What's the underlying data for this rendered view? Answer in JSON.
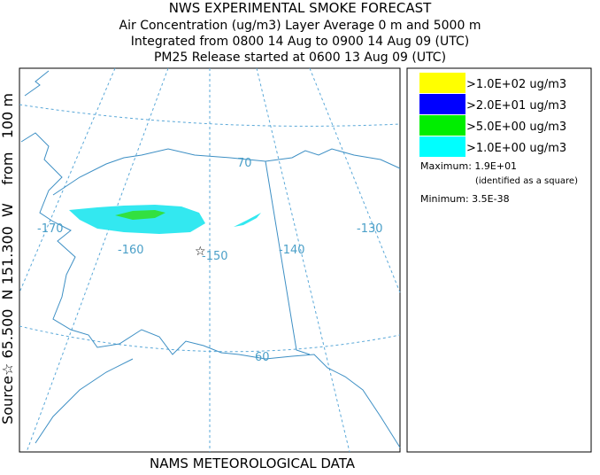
{
  "header": {
    "title": "NWS EXPERIMENTAL SMOKE FORECAST",
    "lines": [
      "Air Concentration (ug/m3) Layer Average    0 m and  5000 m",
      "Integrated from 0800 14 Aug to 0900 14 Aug 09 (UTC)",
      "PM25 Release started at 0600 13 Aug 09 (UTC)"
    ]
  },
  "source_label": "Source☆ 65.500  N 151.300  W    from   100 m",
  "footer": "NAMS METEOROLOGICAL DATA",
  "map": {
    "labels": [
      "70",
      "-170",
      "-160",
      "-150",
      "-140",
      "-130",
      "60"
    ]
  },
  "legend": {
    "items": [
      {
        "label": ">1.0E+02 ug/m3",
        "color": "#ffff00"
      },
      {
        "label": ">2.0E+01 ug/m3",
        "color": "#0000ff"
      },
      {
        "label": ">5.0E+00 ug/m3",
        "color": "#00ee00"
      },
      {
        "label": ">1.0E+00 ug/m3",
        "color": "#00ffff"
      }
    ],
    "maximum": "Maximum: 1.9E+01",
    "maximum_note": "(identified as a square)",
    "minimum": "Minimum: 3.5E-38"
  }
}
